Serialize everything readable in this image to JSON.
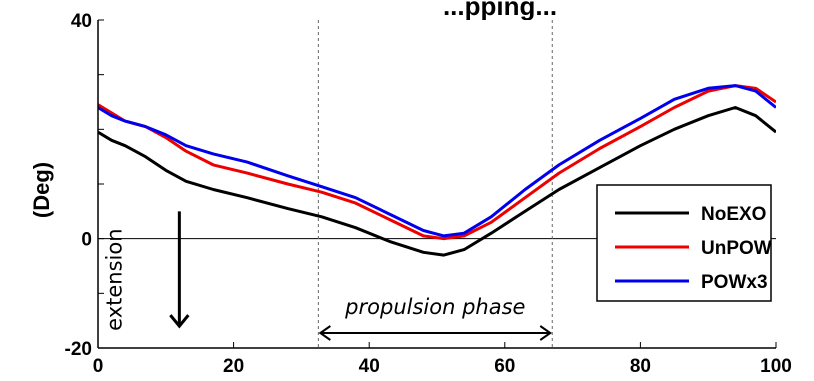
{
  "chart_data": {
    "type": "line",
    "title": "...pping...",
    "ylabel": "(Deg)",
    "xlim": [
      0,
      100
    ],
    "ylim": [
      -20,
      40
    ],
    "xticks": [
      0,
      20,
      40,
      60,
      80,
      100
    ],
    "yticks_labeled": [
      -20,
      0,
      40
    ],
    "grid": false,
    "zero_line": true,
    "legend_position": "right",
    "x": [
      0,
      2,
      4,
      7,
      10,
      13,
      17,
      22,
      28,
      33,
      38,
      43,
      48,
      51,
      54,
      58,
      63,
      68,
      74,
      80,
      85,
      90,
      94,
      97,
      100
    ],
    "series": [
      {
        "name": "NoEXO",
        "color": "#000000",
        "values": [
          19.5,
          18,
          17,
          15,
          12.5,
          10.5,
          9,
          7.5,
          5.5,
          4,
          2,
          -0.5,
          -2.5,
          -3,
          -2,
          1,
          5,
          9,
          13,
          17,
          20,
          22.5,
          24,
          22.5,
          19.5
        ]
      },
      {
        "name": "UnPOW",
        "color": "#ee0000",
        "values": [
          24.5,
          23,
          21.5,
          20.5,
          18.5,
          16,
          13.5,
          12,
          10,
          8.5,
          6.5,
          3.5,
          0.5,
          0,
          0.5,
          3,
          7.5,
          12,
          16.5,
          20.5,
          24,
          27,
          28,
          27.5,
          25
        ]
      },
      {
        "name": "POWx3",
        "color": "#0000ee",
        "values": [
          24,
          22.5,
          21.5,
          20.5,
          19,
          17,
          15.5,
          14,
          11.5,
          9.5,
          7.5,
          4.5,
          1.5,
          0.5,
          1,
          4,
          9,
          13.5,
          18,
          22,
          25.5,
          27.5,
          28,
          27,
          24
        ]
      }
    ],
    "annotations": {
      "extension": "extension",
      "propulsion": "propulsion phase"
    },
    "propulsion_phase_x": [
      32.5,
      67
    ],
    "extension_arrow": {
      "x": 12,
      "y_from": 5,
      "y_to": -16
    }
  }
}
